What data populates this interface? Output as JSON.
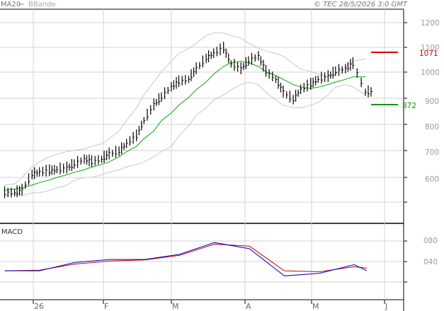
{
  "header": {
    "legend_ma": "MA20",
    "legend_bb": "BBands",
    "copyright": "© TEC 28/5/2026 3:0 GMT"
  },
  "price_panel": {
    "y_ticks": [
      "1200",
      "1100",
      "1000",
      "900",
      "800",
      "700",
      "600"
    ],
    "resistance": {
      "label": "1071",
      "value": 1071,
      "color": "#cc0000"
    },
    "support": {
      "label": "872",
      "value": 872,
      "color": "#009900"
    }
  },
  "macd_panel": {
    "title": "MACD",
    "y_ticks": [
      "080",
      "040"
    ]
  },
  "x_axis": {
    "months": [
      "26",
      "F",
      "M",
      "A",
      "M",
      "J"
    ]
  },
  "colors": {
    "price_bars": "#000000",
    "ma20": "#00aa00",
    "bbands": "#c8c8c8",
    "macd_line": "#0000cc",
    "signal_line": "#cc0000",
    "grid": "#d0d0d0"
  },
  "chart_data": [
    {
      "type": "line",
      "title": "",
      "series_notes": "Daily price bars with MA20 and Bollinger Bands",
      "x": [
        "2026-01-02",
        "2026-01-06",
        "2026-01-09",
        "2026-01-13",
        "2026-01-16",
        "2026-01-20",
        "2026-01-23",
        "2026-01-27",
        "2026-01-30",
        "2026-02-03",
        "2026-02-06",
        "2026-02-10",
        "2026-02-13",
        "2026-02-17",
        "2026-02-20",
        "2026-02-24",
        "2026-02-27",
        "2026-03-03",
        "2026-03-06",
        "2026-03-10",
        "2026-03-13",
        "2026-03-17",
        "2026-03-20",
        "2026-03-24",
        "2026-03-27",
        "2026-03-31",
        "2026-04-03",
        "2026-04-07",
        "2026-04-10",
        "2026-04-14",
        "2026-04-17",
        "2026-04-21",
        "2026-04-24",
        "2026-04-28",
        "2026-05-01",
        "2026-05-05",
        "2026-05-08",
        "2026-05-12",
        "2026-05-15",
        "2026-05-19",
        "2026-05-22",
        "2026-05-27"
      ],
      "series": [
        {
          "name": "",
          "values": [
            540,
            540,
            550,
            610,
            620,
            625,
            630,
            635,
            650,
            670,
            660,
            670,
            690,
            700,
            730,
            760,
            820,
            880,
            910,
            950,
            970,
            980,
            1020,
            1060,
            1080,
            1100,
            1040,
            1020,
            1050,
            1070,
            1010,
            980,
            930,
            900,
            940,
            960,
            980,
            990,
            1010,
            1020,
            1040,
            930
          ]
        },
        {
          "name": "MA20",
          "values": [
            550,
            555,
            560,
            570,
            580,
            590,
            600,
            610,
            620,
            630,
            640,
            650,
            660,
            680,
            700,
            720,
            750,
            780,
            820,
            850,
            880,
            910,
            940,
            970,
            1000,
            1030,
            1045,
            1050,
            1045,
            1030,
            1010,
            995,
            980,
            960,
            950,
            945,
            950,
            960,
            970,
            980,
            990,
            990
          ]
        },
        {
          "name": "BBands upper",
          "values": [
            570,
            575,
            600,
            640,
            660,
            680,
            690,
            700,
            705,
            710,
            720,
            730,
            750,
            780,
            820,
            870,
            920,
            970,
            1010,
            1050,
            1080,
            1100,
            1120,
            1150,
            1160,
            1160,
            1150,
            1140,
            1120,
            1100,
            1090,
            1080,
            1070,
            1040,
            1020,
            1010,
            1000,
            990,
            1000,
            1030,
            1050,
            1060
          ]
        },
        {
          "name": "BBands lower",
          "values": [
            530,
            535,
            530,
            540,
            540,
            550,
            560,
            570,
            590,
            600,
            600,
            610,
            620,
            630,
            640,
            650,
            660,
            680,
            700,
            720,
            760,
            800,
            840,
            870,
            900,
            920,
            940,
            960,
            970,
            960,
            930,
            900,
            880,
            870,
            870,
            880,
            890,
            920,
            950,
            960,
            950,
            920
          ]
        }
      ],
      "ylim": [
        500,
        1250
      ]
    },
    {
      "type": "line",
      "title": "MACD",
      "x": [
        "2026-01-02",
        "2026-01-16",
        "2026-01-30",
        "2026-02-13",
        "2026-02-27",
        "2026-03-13",
        "2026-03-27",
        "2026-04-10",
        "2026-04-24",
        "2026-05-08",
        "2026-05-22",
        "2026-05-27"
      ],
      "series": [
        {
          "name": "",
          "values": [
            22,
            22,
            38,
            44,
            44,
            54,
            77,
            65,
            12,
            17,
            34,
            22
          ]
        },
        {
          "name": "",
          "values": [
            22,
            23,
            35,
            41,
            43,
            52,
            74,
            70,
            22,
            20,
            30,
            27
          ]
        }
      ],
      "ylim": [
        0,
        100
      ]
    }
  ]
}
